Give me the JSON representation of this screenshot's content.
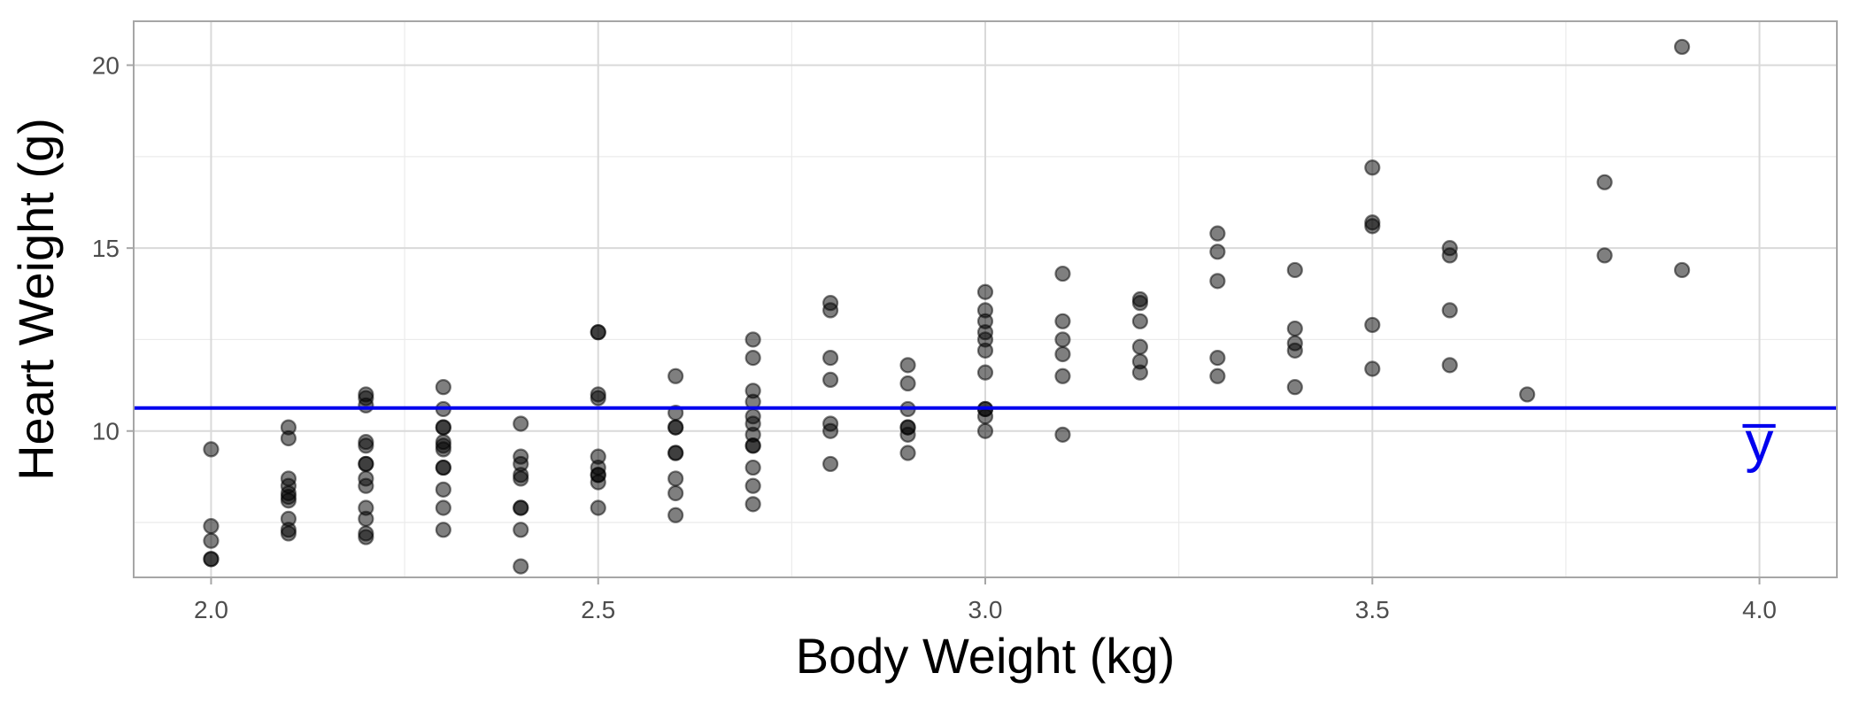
{
  "chart_data": {
    "type": "scatter",
    "xlabel": "Body Weight (kg)",
    "ylabel": "Heart Weight (g)",
    "xlim": [
      1.9,
      4.1
    ],
    "ylim": [
      6.0,
      21.2
    ],
    "x_ticks": [
      2.0,
      2.5,
      3.0,
      3.5,
      4.0
    ],
    "x_tick_labels": [
      "2.0",
      "2.5",
      "3.0",
      "3.5",
      "4.0"
    ],
    "y_ticks": [
      10,
      15,
      20
    ],
    "y_tick_labels": [
      "10",
      "15",
      "20"
    ],
    "x_minor_ticks": [
      2.25,
      2.75,
      3.25,
      3.75
    ],
    "y_minor_ticks": [
      7.5,
      12.5,
      17.5
    ],
    "grid": true,
    "theme": "light",
    "point_color": "#000000",
    "point_opacity": 0.5,
    "reference_line": {
      "type": "horizontal",
      "y": 10.63,
      "color": "#0000ee",
      "label": "y̅"
    },
    "series": [
      {
        "points": [
          [
            2.0,
            6.5
          ],
          [
            2.0,
            6.5
          ],
          [
            2.0,
            7.0
          ],
          [
            2.0,
            7.4
          ],
          [
            2.0,
            9.5
          ],
          [
            2.1,
            7.2
          ],
          [
            2.1,
            7.3
          ],
          [
            2.1,
            7.6
          ],
          [
            2.1,
            8.1
          ],
          [
            2.1,
            8.2
          ],
          [
            2.1,
            8.3
          ],
          [
            2.1,
            8.5
          ],
          [
            2.1,
            8.7
          ],
          [
            2.1,
            9.8
          ],
          [
            2.1,
            10.1
          ],
          [
            2.2,
            7.1
          ],
          [
            2.2,
            7.2
          ],
          [
            2.2,
            7.6
          ],
          [
            2.2,
            7.9
          ],
          [
            2.2,
            8.5
          ],
          [
            2.2,
            8.7
          ],
          [
            2.2,
            9.1
          ],
          [
            2.2,
            9.1
          ],
          [
            2.2,
            9.6
          ],
          [
            2.2,
            9.7
          ],
          [
            2.2,
            10.7
          ],
          [
            2.2,
            10.9
          ],
          [
            2.2,
            11.0
          ],
          [
            2.3,
            7.3
          ],
          [
            2.3,
            7.9
          ],
          [
            2.3,
            8.4
          ],
          [
            2.3,
            9.0
          ],
          [
            2.3,
            9.0
          ],
          [
            2.3,
            9.5
          ],
          [
            2.3,
            9.6
          ],
          [
            2.3,
            9.7
          ],
          [
            2.3,
            10.1
          ],
          [
            2.3,
            10.1
          ],
          [
            2.3,
            10.6
          ],
          [
            2.3,
            11.2
          ],
          [
            2.4,
            6.3
          ],
          [
            2.4,
            7.3
          ],
          [
            2.4,
            7.9
          ],
          [
            2.4,
            7.9
          ],
          [
            2.4,
            8.7
          ],
          [
            2.4,
            8.8
          ],
          [
            2.4,
            9.1
          ],
          [
            2.4,
            9.3
          ],
          [
            2.4,
            10.2
          ],
          [
            2.5,
            7.9
          ],
          [
            2.5,
            8.6
          ],
          [
            2.5,
            8.8
          ],
          [
            2.5,
            8.8
          ],
          [
            2.5,
            9.0
          ],
          [
            2.5,
            9.3
          ],
          [
            2.5,
            10.9
          ],
          [
            2.5,
            11.0
          ],
          [
            2.5,
            12.7
          ],
          [
            2.5,
            12.7
          ],
          [
            2.6,
            7.7
          ],
          [
            2.6,
            8.3
          ],
          [
            2.6,
            8.7
          ],
          [
            2.6,
            9.4
          ],
          [
            2.6,
            9.4
          ],
          [
            2.6,
            10.1
          ],
          [
            2.6,
            10.1
          ],
          [
            2.6,
            10.5
          ],
          [
            2.6,
            11.5
          ],
          [
            2.7,
            8.0
          ],
          [
            2.7,
            8.5
          ],
          [
            2.7,
            9.0
          ],
          [
            2.7,
            9.6
          ],
          [
            2.7,
            9.6
          ],
          [
            2.7,
            9.9
          ],
          [
            2.7,
            10.2
          ],
          [
            2.7,
            10.4
          ],
          [
            2.7,
            10.8
          ],
          [
            2.7,
            11.1
          ],
          [
            2.7,
            12.0
          ],
          [
            2.7,
            12.5
          ],
          [
            2.8,
            9.1
          ],
          [
            2.8,
            10.0
          ],
          [
            2.8,
            10.2
          ],
          [
            2.8,
            11.4
          ],
          [
            2.8,
            12.0
          ],
          [
            2.8,
            13.3
          ],
          [
            2.8,
            13.5
          ],
          [
            2.9,
            9.4
          ],
          [
            2.9,
            9.9
          ],
          [
            2.9,
            10.1
          ],
          [
            2.9,
            10.1
          ],
          [
            2.9,
            10.6
          ],
          [
            2.9,
            11.3
          ],
          [
            2.9,
            11.8
          ],
          [
            3.0,
            10.0
          ],
          [
            3.0,
            10.4
          ],
          [
            3.0,
            10.6
          ],
          [
            3.0,
            10.6
          ],
          [
            3.0,
            11.6
          ],
          [
            3.0,
            12.2
          ],
          [
            3.0,
            12.5
          ],
          [
            3.0,
            12.7
          ],
          [
            3.0,
            13.0
          ],
          [
            3.0,
            13.3
          ],
          [
            3.0,
            13.8
          ],
          [
            3.1,
            9.9
          ],
          [
            3.1,
            11.5
          ],
          [
            3.1,
            12.1
          ],
          [
            3.1,
            12.5
          ],
          [
            3.1,
            13.0
          ],
          [
            3.1,
            14.3
          ],
          [
            3.2,
            11.6
          ],
          [
            3.2,
            11.9
          ],
          [
            3.2,
            12.3
          ],
          [
            3.2,
            13.0
          ],
          [
            3.2,
            13.5
          ],
          [
            3.2,
            13.6
          ],
          [
            3.3,
            11.5
          ],
          [
            3.3,
            12.0
          ],
          [
            3.3,
            14.1
          ],
          [
            3.3,
            14.9
          ],
          [
            3.3,
            15.4
          ],
          [
            3.4,
            11.2
          ],
          [
            3.4,
            12.2
          ],
          [
            3.4,
            12.4
          ],
          [
            3.4,
            12.8
          ],
          [
            3.4,
            14.4
          ],
          [
            3.5,
            11.7
          ],
          [
            3.5,
            12.9
          ],
          [
            3.5,
            15.6
          ],
          [
            3.5,
            15.7
          ],
          [
            3.5,
            17.2
          ],
          [
            3.6,
            11.8
          ],
          [
            3.6,
            13.3
          ],
          [
            3.6,
            14.8
          ],
          [
            3.6,
            15.0
          ],
          [
            3.7,
            11.0
          ],
          [
            3.8,
            14.8
          ],
          [
            3.8,
            16.8
          ],
          [
            3.9,
            14.4
          ],
          [
            3.9,
            20.5
          ]
        ]
      }
    ]
  }
}
